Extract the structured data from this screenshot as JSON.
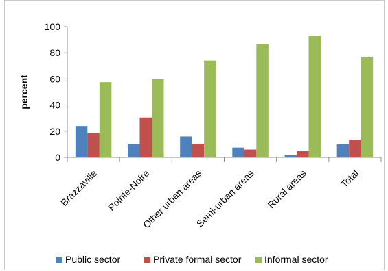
{
  "chart_data": {
    "type": "bar",
    "title": "",
    "xlabel": "",
    "ylabel": "percent",
    "ylim": [
      0,
      100
    ],
    "yticks": [
      0,
      20,
      40,
      60,
      80,
      100
    ],
    "grid": false,
    "legend_position": "bottom",
    "categories": [
      "Brazzaville",
      "Pointe-Noire",
      "Other urban areas",
      "Semi-urban areas",
      "Rural areas",
      "Total"
    ],
    "series": [
      {
        "name": "Public sector",
        "color": "#4f81bd",
        "values": [
          24,
          10,
          16,
          7.5,
          2,
          10
        ]
      },
      {
        "name": "Private formal sector",
        "color": "#c0504d",
        "values": [
          18.5,
          30.5,
          10.5,
          6,
          5,
          13.5
        ]
      },
      {
        "name": "Informal sector",
        "color": "#9bbb59",
        "values": [
          57.5,
          60,
          74,
          86.5,
          93,
          77
        ]
      }
    ]
  }
}
